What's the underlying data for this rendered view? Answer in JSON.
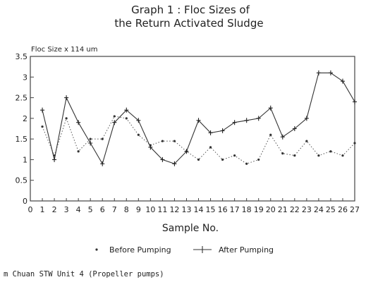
{
  "title_line1": "Graph 1   :  Floc Sizes of",
  "title_line2": "the Return Activated Sludge",
  "footer": "m Chuan STW Unit 4 (Propeller pumps)",
  "chart_data": {
    "type": "line",
    "ylabel": "Floc Size  x 114 um",
    "xlabel": "Sample No.",
    "xlim": [
      0,
      27
    ],
    "ylim": [
      0,
      3.5
    ],
    "x_ticks": [
      "0",
      "1",
      "2",
      "3",
      "4",
      "5",
      "6",
      "7",
      "8",
      "9",
      "10",
      "11",
      "12",
      "13",
      "14",
      "15",
      "16",
      "17",
      "18",
      "19",
      "20",
      "21",
      "22",
      "23",
      "24",
      "25",
      "26",
      "27"
    ],
    "y_ticks": [
      "0",
      "0.5",
      "1",
      "1.5",
      "2",
      "2.5",
      "3",
      "3.5"
    ],
    "grid": false,
    "legend_position": "bottom",
    "series": [
      {
        "name": "Before Pumping",
        "marker": "dot",
        "x": [
          1,
          2,
          3,
          4,
          5,
          6,
          7,
          8,
          9,
          10,
          11,
          12,
          13,
          14,
          15,
          16,
          17,
          18,
          19,
          20,
          21,
          22,
          23,
          24,
          25,
          26,
          27
        ],
        "values": [
          1.8,
          1.1,
          2.0,
          1.2,
          1.5,
          1.5,
          2.05,
          2.0,
          1.6,
          1.35,
          1.45,
          1.45,
          1.2,
          1.0,
          1.3,
          1.0,
          1.1,
          0.9,
          1.0,
          1.6,
          1.15,
          1.1,
          1.45,
          1.1,
          1.2,
          1.1,
          1.4
        ]
      },
      {
        "name": "After Pumping",
        "marker": "plus",
        "x": [
          1,
          2,
          3,
          4,
          5,
          6,
          7,
          8,
          9,
          10,
          11,
          12,
          13,
          14,
          15,
          16,
          17,
          18,
          19,
          20,
          21,
          22,
          23,
          24,
          25,
          26,
          27
        ],
        "values": [
          2.2,
          1.0,
          2.5,
          1.9,
          1.4,
          0.9,
          1.9,
          2.2,
          1.95,
          1.3,
          1.0,
          0.9,
          1.2,
          1.95,
          1.65,
          1.7,
          1.9,
          1.95,
          2.0,
          2.25,
          1.55,
          1.75,
          2.0,
          3.1,
          3.1,
          2.9,
          2.4
        ]
      }
    ]
  }
}
